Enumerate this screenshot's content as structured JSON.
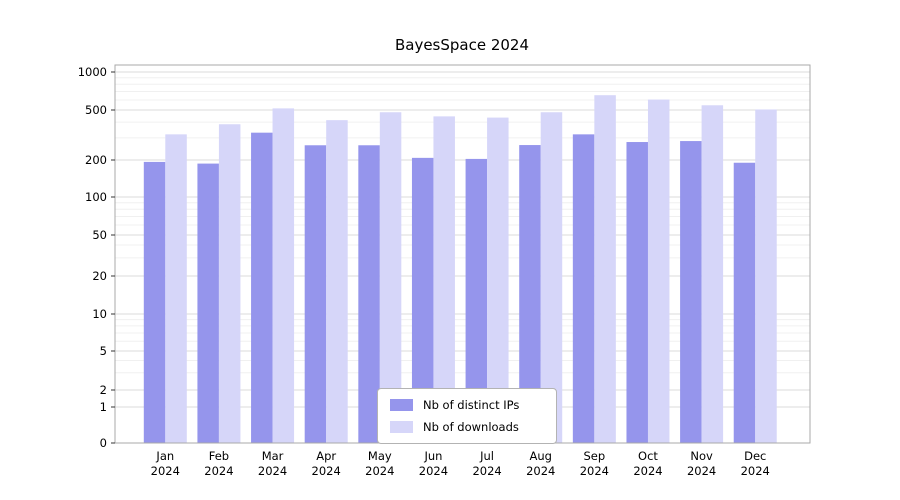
{
  "title": "BayesSpace 2024",
  "chart_data": {
    "type": "bar",
    "title": "BayesSpace 2024",
    "xlabel": "",
    "ylabel": "",
    "yscale": "log-with-zero",
    "ylim": [
      0,
      1000
    ],
    "grid": true,
    "legend_position": "bottom-center-inside",
    "yticks": [
      0,
      1,
      2,
      5,
      10,
      20,
      50,
      100,
      200,
      500,
      1000
    ],
    "minor_gridlines": [
      3,
      4,
      6,
      7,
      8,
      9,
      30,
      40,
      60,
      70,
      80,
      90,
      300,
      400,
      600,
      700,
      800,
      900
    ],
    "categories": [
      {
        "month": "Jan",
        "year": "2024"
      },
      {
        "month": "Feb",
        "year": "2024"
      },
      {
        "month": "Mar",
        "year": "2024"
      },
      {
        "month": "Apr",
        "year": "2024"
      },
      {
        "month": "May",
        "year": "2024"
      },
      {
        "month": "Jun",
        "year": "2024"
      },
      {
        "month": "Jul",
        "year": "2024"
      },
      {
        "month": "Aug",
        "year": "2024"
      },
      {
        "month": "Sep",
        "year": "2024"
      },
      {
        "month": "Oct",
        "year": "2024"
      },
      {
        "month": "Nov",
        "year": "2024"
      },
      {
        "month": "Dec",
        "year": "2024"
      }
    ],
    "series": [
      {
        "name": "Nb of distinct IPs",
        "color": "#9595ec",
        "values": [
          193,
          187,
          330,
          262,
          262,
          208,
          204,
          263,
          320,
          278,
          283,
          190
        ]
      },
      {
        "name": "Nb of downloads",
        "color": "#d6d6f9",
        "values": [
          320,
          385,
          515,
          415,
          480,
          445,
          435,
          480,
          655,
          605,
          545,
          505
        ]
      }
    ]
  }
}
